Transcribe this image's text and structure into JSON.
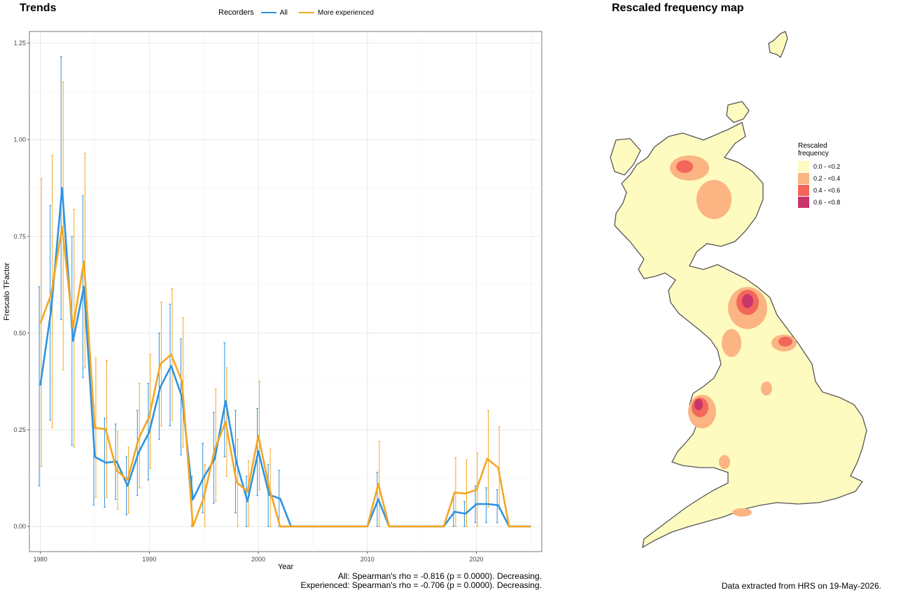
{
  "trends": {
    "title": "Trends",
    "legend": {
      "label": "Recorders",
      "items": [
        {
          "name": "All",
          "color": "#2e93e0"
        },
        {
          "name": "More experienced",
          "color": "#f5a623"
        }
      ]
    },
    "stats": [
      "All: Spearman's rho = -0.816 (p = 0.0000). Decreasing.",
      "Experienced: Spearman's rho = -0.706 (p = 0.0000). Decreasing."
    ]
  },
  "chart_data": {
    "type": "line",
    "xlabel": "Year",
    "ylabel": "Frescalo TFactor",
    "xlim": [
      1979,
      2026
    ],
    "ylim": [
      -0.065,
      1.28
    ],
    "x_ticks": [
      1980,
      1990,
      2000,
      2010,
      2020
    ],
    "y_ticks": [
      0.0,
      0.25,
      0.5,
      0.75,
      1.0,
      1.25
    ],
    "y_tick_labels": [
      "0.00",
      "0.25",
      "0.50",
      "0.75",
      "1.00",
      "1.25"
    ],
    "grid": true,
    "legend_position": "top",
    "series": [
      {
        "name": "All",
        "color": "#2e93e0",
        "points": [
          {
            "x": 1980,
            "y": 0.365,
            "lo": 0.105,
            "hi": 0.62
          },
          {
            "x": 1981,
            "y": 0.56,
            "lo": 0.275,
            "hi": 0.83
          },
          {
            "x": 1982,
            "y": 0.875,
            "lo": 0.535,
            "hi": 1.215
          },
          {
            "x": 1983,
            "y": 0.48,
            "lo": 0.21,
            "hi": 0.75
          },
          {
            "x": 1984,
            "y": 0.62,
            "lo": 0.385,
            "hi": 0.855
          },
          {
            "x": 1985,
            "y": 0.18,
            "lo": 0.055,
            "hi": 0.31
          },
          {
            "x": 1986,
            "y": 0.165,
            "lo": 0.05,
            "hi": 0.28
          },
          {
            "x": 1987,
            "y": 0.168,
            "lo": 0.07,
            "hi": 0.265
          },
          {
            "x": 1988,
            "y": 0.105,
            "lo": 0.03,
            "hi": 0.18
          },
          {
            "x": 1989,
            "y": 0.19,
            "lo": 0.08,
            "hi": 0.3
          },
          {
            "x": 1990,
            "y": 0.245,
            "lo": 0.12,
            "hi": 0.37
          },
          {
            "x": 1991,
            "y": 0.36,
            "lo": 0.225,
            "hi": 0.5
          },
          {
            "x": 1992,
            "y": 0.415,
            "lo": 0.26,
            "hi": 0.575
          },
          {
            "x": 1993,
            "y": 0.335,
            "lo": 0.185,
            "hi": 0.485
          },
          {
            "x": 1994,
            "y": 0.07,
            "lo": 0.0,
            "hi": 0.13
          },
          {
            "x": 1995,
            "y": 0.128,
            "lo": 0.035,
            "hi": 0.215
          },
          {
            "x": 1996,
            "y": 0.175,
            "lo": 0.06,
            "hi": 0.295
          },
          {
            "x": 1997,
            "y": 0.325,
            "lo": 0.18,
            "hi": 0.475
          },
          {
            "x": 1998,
            "y": 0.165,
            "lo": 0.035,
            "hi": 0.3
          },
          {
            "x": 1999,
            "y": 0.065,
            "lo": 0.0,
            "hi": 0.13
          },
          {
            "x": 2000,
            "y": 0.195,
            "lo": 0.08,
            "hi": 0.305
          },
          {
            "x": 2001,
            "y": 0.082,
            "lo": 0.0,
            "hi": 0.16
          },
          {
            "x": 2002,
            "y": 0.072,
            "lo": 0.0,
            "hi": 0.145
          },
          {
            "x": 2003,
            "y": 0.0,
            "lo": 0.0,
            "hi": 0.0
          },
          {
            "x": 2004,
            "y": 0.0,
            "lo": 0.0,
            "hi": 0.0
          },
          {
            "x": 2005,
            "y": 0.0,
            "lo": 0.0,
            "hi": 0.0
          },
          {
            "x": 2006,
            "y": 0.0,
            "lo": 0.0,
            "hi": 0.0
          },
          {
            "x": 2007,
            "y": 0.0,
            "lo": 0.0,
            "hi": 0.0
          },
          {
            "x": 2008,
            "y": 0.0,
            "lo": 0.0,
            "hi": 0.0
          },
          {
            "x": 2009,
            "y": 0.0,
            "lo": 0.0,
            "hi": 0.0
          },
          {
            "x": 2010,
            "y": 0.0,
            "lo": 0.0,
            "hi": 0.0
          },
          {
            "x": 2011,
            "y": 0.07,
            "lo": 0.0,
            "hi": 0.14
          },
          {
            "x": 2012,
            "y": 0.0,
            "lo": 0.0,
            "hi": 0.0
          },
          {
            "x": 2013,
            "y": 0.0,
            "lo": 0.0,
            "hi": 0.0
          },
          {
            "x": 2014,
            "y": 0.0,
            "lo": 0.0,
            "hi": 0.0
          },
          {
            "x": 2015,
            "y": 0.0,
            "lo": 0.0,
            "hi": 0.0
          },
          {
            "x": 2016,
            "y": 0.0,
            "lo": 0.0,
            "hi": 0.0
          },
          {
            "x": 2017,
            "y": 0.0,
            "lo": 0.0,
            "hi": 0.0
          },
          {
            "x": 2018,
            "y": 0.038,
            "lo": 0.0,
            "hi": 0.075
          },
          {
            "x": 2019,
            "y": 0.033,
            "lo": 0.0,
            "hi": 0.065
          },
          {
            "x": 2020,
            "y": 0.058,
            "lo": 0.01,
            "hi": 0.105
          },
          {
            "x": 2021,
            "y": 0.058,
            "lo": 0.01,
            "hi": 0.1
          },
          {
            "x": 2022,
            "y": 0.055,
            "lo": 0.01,
            "hi": 0.095
          },
          {
            "x": 2023,
            "y": 0.0,
            "lo": 0.0,
            "hi": 0.0
          },
          {
            "x": 2024,
            "y": 0.0,
            "lo": 0.0,
            "hi": 0.0
          },
          {
            "x": 2025,
            "y": 0.0,
            "lo": 0.0,
            "hi": 0.0
          }
        ]
      },
      {
        "name": "More experienced",
        "color": "#f5a623",
        "points": [
          {
            "x": 1980,
            "y": 0.525,
            "lo": 0.155,
            "hi": 0.9
          },
          {
            "x": 1981,
            "y": 0.6,
            "lo": 0.255,
            "hi": 0.96
          },
          {
            "x": 1982,
            "y": 0.775,
            "lo": 0.405,
            "hi": 1.15
          },
          {
            "x": 1983,
            "y": 0.515,
            "lo": 0.205,
            "hi": 0.82
          },
          {
            "x": 1984,
            "y": 0.685,
            "lo": 0.41,
            "hi": 0.965
          },
          {
            "x": 1985,
            "y": 0.255,
            "lo": 0.075,
            "hi": 0.435
          },
          {
            "x": 1986,
            "y": 0.252,
            "lo": 0.075,
            "hi": 0.43
          },
          {
            "x": 1987,
            "y": 0.145,
            "lo": 0.045,
            "hi": 0.245
          },
          {
            "x": 1988,
            "y": 0.12,
            "lo": 0.035,
            "hi": 0.205
          },
          {
            "x": 1989,
            "y": 0.225,
            "lo": 0.1,
            "hi": 0.37
          },
          {
            "x": 1990,
            "y": 0.285,
            "lo": 0.15,
            "hi": 0.445
          },
          {
            "x": 1991,
            "y": 0.42,
            "lo": 0.26,
            "hi": 0.58
          },
          {
            "x": 1992,
            "y": 0.445,
            "lo": 0.275,
            "hi": 0.615
          },
          {
            "x": 1993,
            "y": 0.375,
            "lo": 0.205,
            "hi": 0.54
          },
          {
            "x": 1994,
            "y": 0.0,
            "lo": 0.0,
            "hi": 0.0
          },
          {
            "x": 1995,
            "y": 0.075,
            "lo": 0.0,
            "hi": 0.16
          },
          {
            "x": 1996,
            "y": 0.2,
            "lo": 0.065,
            "hi": 0.355
          },
          {
            "x": 1997,
            "y": 0.27,
            "lo": 0.13,
            "hi": 0.41
          },
          {
            "x": 1998,
            "y": 0.115,
            "lo": 0.0,
            "hi": 0.225
          },
          {
            "x": 1999,
            "y": 0.09,
            "lo": 0.0,
            "hi": 0.17
          },
          {
            "x": 2000,
            "y": 0.235,
            "lo": 0.095,
            "hi": 0.375
          },
          {
            "x": 2001,
            "y": 0.1,
            "lo": 0.0,
            "hi": 0.2
          },
          {
            "x": 2002,
            "y": 0.0,
            "lo": 0.0,
            "hi": 0.0
          },
          {
            "x": 2003,
            "y": 0.0,
            "lo": 0.0,
            "hi": 0.0
          },
          {
            "x": 2004,
            "y": 0.0,
            "lo": 0.0,
            "hi": 0.0
          },
          {
            "x": 2005,
            "y": 0.0,
            "lo": 0.0,
            "hi": 0.0
          },
          {
            "x": 2006,
            "y": 0.0,
            "lo": 0.0,
            "hi": 0.0
          },
          {
            "x": 2007,
            "y": 0.0,
            "lo": 0.0,
            "hi": 0.0
          },
          {
            "x": 2008,
            "y": 0.0,
            "lo": 0.0,
            "hi": 0.0
          },
          {
            "x": 2009,
            "y": 0.0,
            "lo": 0.0,
            "hi": 0.0
          },
          {
            "x": 2010,
            "y": 0.0,
            "lo": 0.0,
            "hi": 0.0
          },
          {
            "x": 2011,
            "y": 0.11,
            "lo": 0.0,
            "hi": 0.22
          },
          {
            "x": 2012,
            "y": 0.0,
            "lo": 0.0,
            "hi": 0.0
          },
          {
            "x": 2013,
            "y": 0.0,
            "lo": 0.0,
            "hi": 0.0
          },
          {
            "x": 2014,
            "y": 0.0,
            "lo": 0.0,
            "hi": 0.0
          },
          {
            "x": 2015,
            "y": 0.0,
            "lo": 0.0,
            "hi": 0.0
          },
          {
            "x": 2016,
            "y": 0.0,
            "lo": 0.0,
            "hi": 0.0
          },
          {
            "x": 2017,
            "y": 0.0,
            "lo": 0.0,
            "hi": 0.0
          },
          {
            "x": 2018,
            "y": 0.088,
            "lo": 0.0,
            "hi": 0.178
          },
          {
            "x": 2019,
            "y": 0.085,
            "lo": 0.0,
            "hi": 0.172
          },
          {
            "x": 2020,
            "y": 0.095,
            "lo": 0.0,
            "hi": 0.19
          },
          {
            "x": 2021,
            "y": 0.175,
            "lo": 0.05,
            "hi": 0.3
          },
          {
            "x": 2022,
            "y": 0.152,
            "lo": 0.045,
            "hi": 0.258
          },
          {
            "x": 2023,
            "y": 0.0,
            "lo": 0.0,
            "hi": 0.0
          },
          {
            "x": 2024,
            "y": 0.0,
            "lo": 0.0,
            "hi": 0.0
          },
          {
            "x": 2025,
            "y": 0.0,
            "lo": 0.0,
            "hi": 0.0
          }
        ]
      }
    ]
  },
  "map": {
    "title": "Rescaled frequency map",
    "legend_title": "Rescaled frequency",
    "legend_title_lines": [
      "Rescaled",
      "frequency"
    ],
    "bins": [
      {
        "label": "0.0 - <0.2",
        "color": "#fefbc0"
      },
      {
        "label": "0.2 - <0.4",
        "color": "#fbb482"
      },
      {
        "label": "0.4 - <0.6",
        "color": "#f2675a"
      },
      {
        "label": "0.6 - <0.8",
        "color": "#c8356a"
      }
    ],
    "outline_color": "#555555"
  },
  "footer": "Data extracted from HRS on 19-May-2026."
}
